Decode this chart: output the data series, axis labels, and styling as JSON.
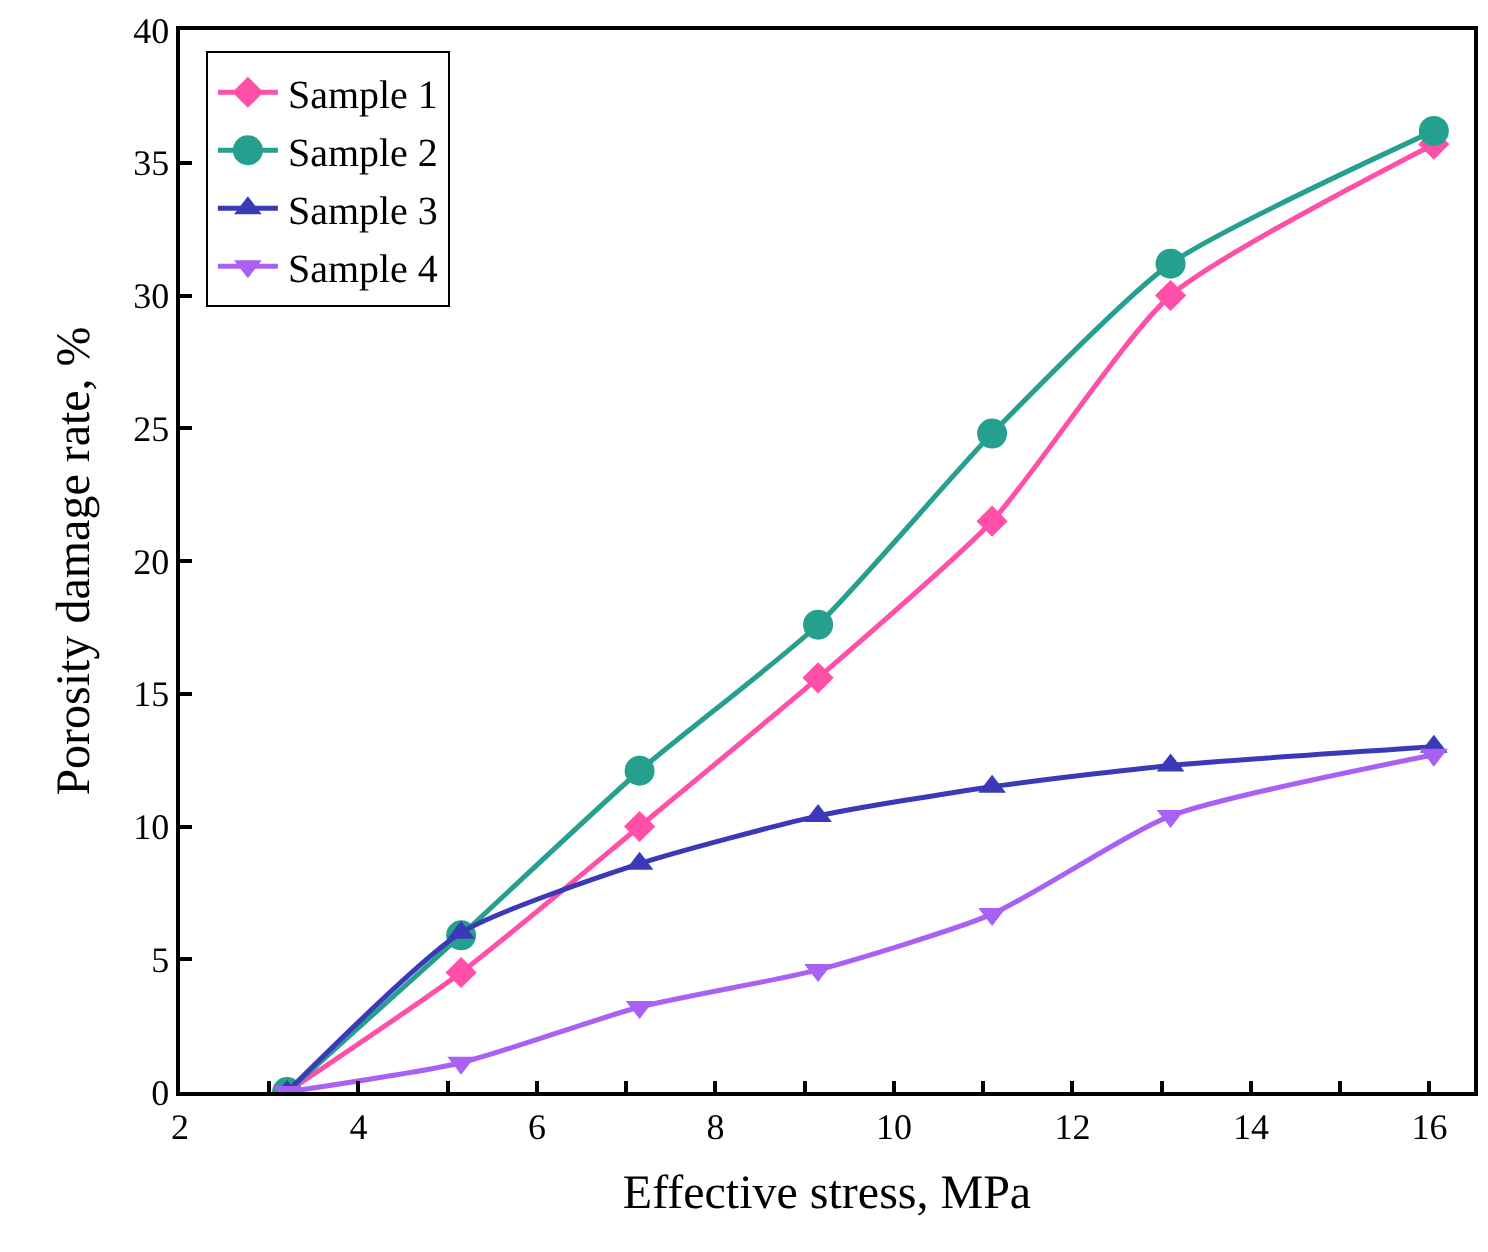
{
  "chart_data": {
    "type": "line",
    "xlabel": "Effective stress, MPa",
    "ylabel": "Porosity damage rate, %",
    "x": [
      3.2,
      5.15,
      7.15,
      9.15,
      11.1,
      13.1,
      16.05
    ],
    "series": [
      {
        "name": "Sample 1",
        "color": "#ff4fa8",
        "marker": "diamond",
        "values": [
          0,
          4.5,
          10,
          15.6,
          21.5,
          30.0,
          35.7
        ]
      },
      {
        "name": "Sample 2",
        "color": "#26a08e",
        "marker": "circle",
        "values": [
          0,
          5.9,
          12.1,
          17.6,
          24.8,
          31.2,
          36.2
        ]
      },
      {
        "name": "Sample 3",
        "color": "#3a3ab8",
        "marker": "triangle",
        "values": [
          0,
          6.0,
          8.6,
          10.4,
          11.5,
          12.3,
          13.0
        ]
      },
      {
        "name": "Sample 4",
        "color": "#a860f5",
        "marker": "triangle-down",
        "values": [
          0,
          1.1,
          3.2,
          4.6,
          6.7,
          10.4,
          12.7
        ]
      }
    ],
    "xlim": [
      2,
      16.5
    ],
    "xticks": [
      2,
      {
        "value": 3,
        "label": null
      },
      4,
      {
        "value": 5,
        "label": null
      },
      6,
      {
        "value": 7,
        "label": null
      },
      8,
      {
        "value": 9,
        "label": null
      },
      10,
      {
        "value": 11,
        "label": null
      },
      12,
      {
        "value": 13,
        "label": null
      },
      14,
      {
        "value": 15,
        "label": null
      },
      16
    ],
    "ylim": [
      0,
      40
    ],
    "yticks": [
      0,
      5,
      10,
      15,
      20,
      25,
      30,
      35,
      40
    ],
    "legend": "top left",
    "line_style": "solid"
  }
}
